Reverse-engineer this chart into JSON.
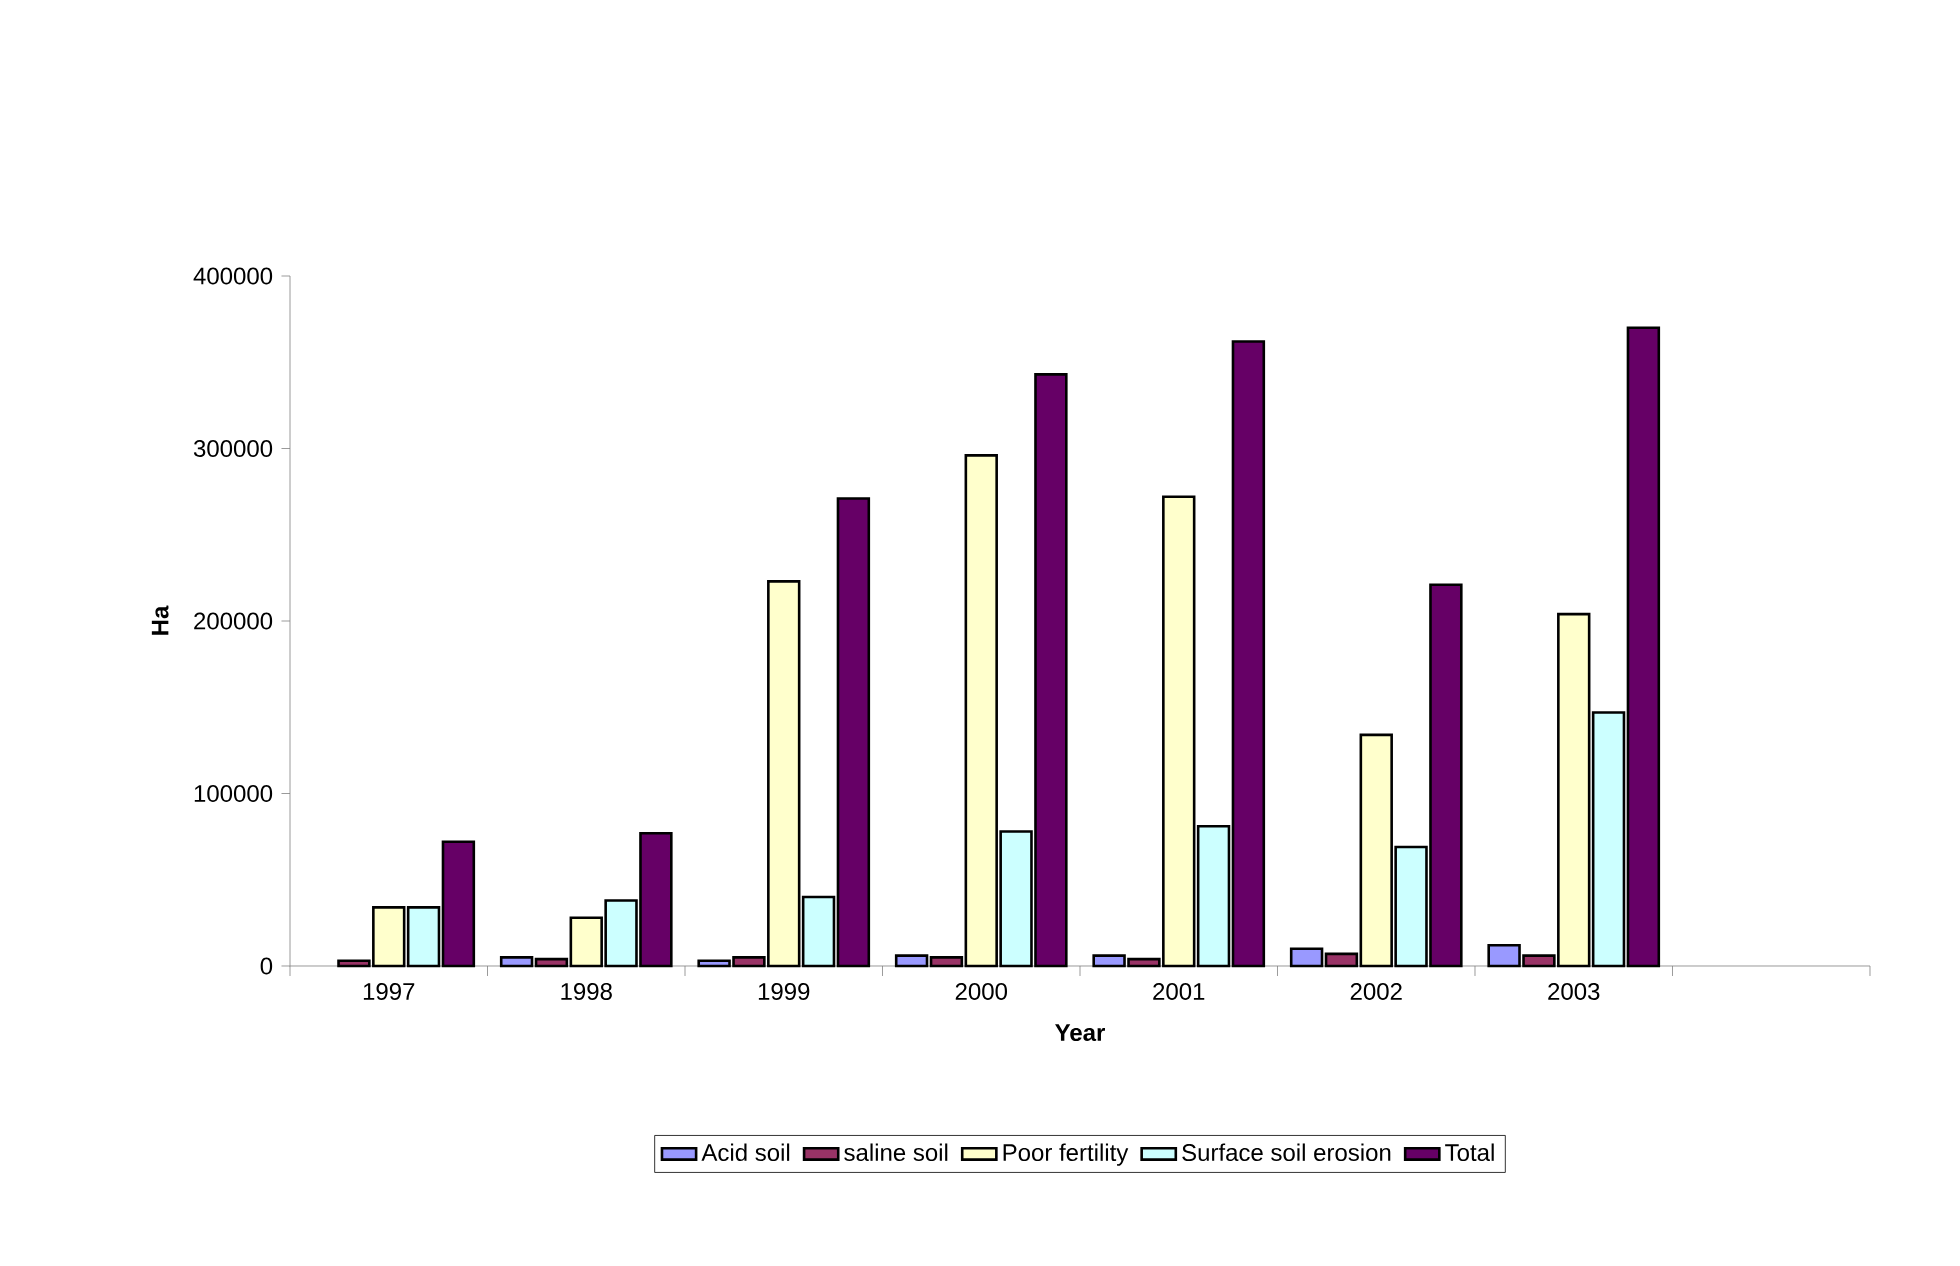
{
  "chart_data": {
    "type": "bar",
    "xlabel": "Year",
    "ylabel": "Ha",
    "categories": [
      "1997",
      "1998",
      "1999",
      "2000",
      "2001",
      "2002",
      "2003",
      null
    ],
    "series": [
      {
        "name": "Acid soil",
        "color": "#9999ff",
        "values": [
          null,
          5000,
          3000,
          6000,
          6000,
          10000,
          12000,
          null
        ]
      },
      {
        "name": "saline soil",
        "color": "#993366",
        "values": [
          3000,
          4000,
          5000,
          5000,
          4000,
          7000,
          6000,
          null
        ]
      },
      {
        "name": "Poor fertility",
        "color": "#ffffcc",
        "values": [
          34000,
          28000,
          223000,
          296000,
          272000,
          134000,
          204000,
          null
        ]
      },
      {
        "name": "Surface soil erosion",
        "color": "#ccffff",
        "values": [
          34000,
          38000,
          40000,
          78000,
          81000,
          69000,
          147000,
          null
        ]
      },
      {
        "name": "Total",
        "color": "#660066",
        "values": [
          72000,
          77000,
          271000,
          343000,
          362000,
          221000,
          370000,
          null
        ]
      }
    ],
    "ylim": [
      0,
      400000
    ],
    "yticks": [
      0,
      100000,
      200000,
      300000,
      400000
    ],
    "legend": "bottom",
    "grid": false
  }
}
